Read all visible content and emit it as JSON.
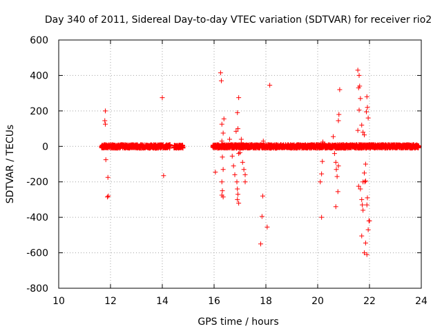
{
  "chart_data": {
    "type": "scatter",
    "title": "Day 340 of 2011, Sidereal Day-to-day VTEC variation (SDTVAR) for receiver rio2",
    "xlabel": "GPS time / hours",
    "ylabel": "SDTVAR / TECUs",
    "xlim": [
      10,
      24
    ],
    "ylim": [
      -800,
      600
    ],
    "xticks": [
      10,
      12,
      14,
      16,
      18,
      20,
      22,
      24
    ],
    "yticks": [
      -800,
      -600,
      -400,
      -200,
      0,
      200,
      400,
      600
    ],
    "grid": true,
    "marker": "+",
    "color": "#ff0000",
    "dense_bands": [
      {
        "x_start": 11.65,
        "x_end": 14.3,
        "y_low": -10,
        "y_high": 10
      },
      {
        "x_start": 14.45,
        "x_end": 14.8,
        "y_low": -10,
        "y_high": 8
      },
      {
        "x_start": 15.95,
        "x_end": 23.9,
        "y_low": -10,
        "y_high": 10
      }
    ],
    "outliers": [
      {
        "x": 11.8,
        "y": 200
      },
      {
        "x": 11.78,
        "y": 145
      },
      {
        "x": 11.8,
        "y": 125
      },
      {
        "x": 11.82,
        "y": -75
      },
      {
        "x": 11.9,
        "y": -175
      },
      {
        "x": 11.88,
        "y": -285
      },
      {
        "x": 11.92,
        "y": -280
      },
      {
        "x": 14.0,
        "y": 275
      },
      {
        "x": 14.05,
        "y": -165
      },
      {
        "x": 16.05,
        "y": -145
      },
      {
        "x": 16.25,
        "y": 415
      },
      {
        "x": 16.28,
        "y": 370
      },
      {
        "x": 16.3,
        "y": 125
      },
      {
        "x": 16.38,
        "y": 155
      },
      {
        "x": 16.35,
        "y": 75
      },
      {
        "x": 16.3,
        "y": 30
      },
      {
        "x": 16.32,
        "y": -60
      },
      {
        "x": 16.35,
        "y": -130
      },
      {
        "x": 16.3,
        "y": -200
      },
      {
        "x": 16.32,
        "y": -250
      },
      {
        "x": 16.3,
        "y": -275
      },
      {
        "x": 16.35,
        "y": -285
      },
      {
        "x": 16.6,
        "y": 40
      },
      {
        "x": 16.7,
        "y": -55
      },
      {
        "x": 16.75,
        "y": -110
      },
      {
        "x": 16.8,
        "y": -160
      },
      {
        "x": 16.85,
        "y": 85
      },
      {
        "x": 16.9,
        "y": 190
      },
      {
        "x": 16.95,
        "y": 275
      },
      {
        "x": 16.92,
        "y": 100
      },
      {
        "x": 16.88,
        "y": -200
      },
      {
        "x": 16.9,
        "y": -240
      },
      {
        "x": 16.92,
        "y": -270
      },
      {
        "x": 16.95,
        "y": -320
      },
      {
        "x": 16.9,
        "y": -300
      },
      {
        "x": 17.0,
        "y": -35
      },
      {
        "x": 17.05,
        "y": 40
      },
      {
        "x": 17.1,
        "y": -90
      },
      {
        "x": 17.15,
        "y": -130
      },
      {
        "x": 17.2,
        "y": -160
      },
      {
        "x": 17.2,
        "y": -200
      },
      {
        "x": 17.05,
        "y": 20
      },
      {
        "x": 16.95,
        "y": -40
      },
      {
        "x": 17.8,
        "y": -550
      },
      {
        "x": 17.85,
        "y": -395
      },
      {
        "x": 17.88,
        "y": -280
      },
      {
        "x": 17.9,
        "y": 30
      },
      {
        "x": 18.05,
        "y": -455
      },
      {
        "x": 18.15,
        "y": 345
      },
      {
        "x": 20.1,
        "y": -200
      },
      {
        "x": 20.15,
        "y": -400
      },
      {
        "x": 20.15,
        "y": -155
      },
      {
        "x": 20.18,
        "y": -85
      },
      {
        "x": 20.2,
        "y": 25
      },
      {
        "x": 20.6,
        "y": 55
      },
      {
        "x": 20.65,
        "y": -40
      },
      {
        "x": 20.7,
        "y": -90
      },
      {
        "x": 20.72,
        "y": -130
      },
      {
        "x": 20.75,
        "y": -170
      },
      {
        "x": 20.78,
        "y": -255
      },
      {
        "x": 20.7,
        "y": -340
      },
      {
        "x": 20.8,
        "y": 145
      },
      {
        "x": 20.82,
        "y": 180
      },
      {
        "x": 20.85,
        "y": 320
      },
      {
        "x": 20.8,
        "y": -110
      },
      {
        "x": 21.55,
        "y": 430
      },
      {
        "x": 21.6,
        "y": 400
      },
      {
        "x": 21.62,
        "y": 340
      },
      {
        "x": 21.58,
        "y": 330
      },
      {
        "x": 21.65,
        "y": 270
      },
      {
        "x": 21.6,
        "y": 205
      },
      {
        "x": 21.55,
        "y": 90
      },
      {
        "x": 21.7,
        "y": 120
      },
      {
        "x": 21.75,
        "y": 80
      },
      {
        "x": 21.8,
        "y": 65
      },
      {
        "x": 21.58,
        "y": -225
      },
      {
        "x": 21.65,
        "y": -240
      },
      {
        "x": 21.7,
        "y": -300
      },
      {
        "x": 21.72,
        "y": -330
      },
      {
        "x": 21.75,
        "y": -360
      },
      {
        "x": 21.7,
        "y": -505
      },
      {
        "x": 21.8,
        "y": -600
      },
      {
        "x": 21.85,
        "y": -545
      },
      {
        "x": 21.82,
        "y": -200
      },
      {
        "x": 21.9,
        "y": -330
      },
      {
        "x": 21.92,
        "y": -290
      },
      {
        "x": 21.95,
        "y": -470
      },
      {
        "x": 21.98,
        "y": -420
      },
      {
        "x": 21.9,
        "y": 280
      },
      {
        "x": 21.92,
        "y": 220
      },
      {
        "x": 21.95,
        "y": 160
      },
      {
        "x": 21.88,
        "y": 195
      },
      {
        "x": 21.85,
        "y": -100
      },
      {
        "x": 21.8,
        "y": -150
      },
      {
        "x": 21.85,
        "y": -195
      },
      {
        "x": 21.9,
        "y": -610
      },
      {
        "x": 22.0,
        "y": -420
      },
      {
        "x": 21.75,
        "y": -200
      }
    ]
  }
}
